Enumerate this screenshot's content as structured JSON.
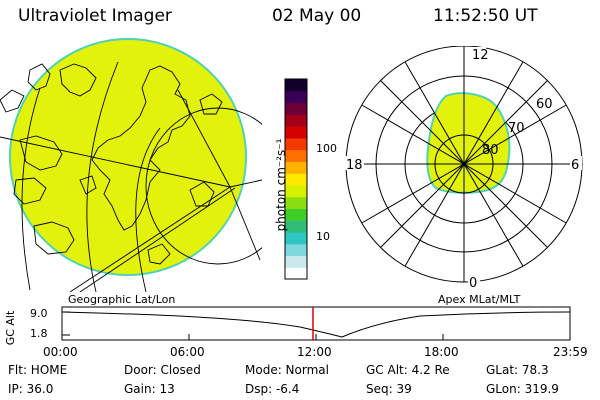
{
  "header": {
    "instrument": "Ultraviolet Imager",
    "date": "02 May 00",
    "time": "11:52:50 UT"
  },
  "colorbar": {
    "unit_label": "photon cm⁻²s⁻¹",
    "ticks": [
      "100",
      "10"
    ],
    "colors": [
      "#ffffff",
      "#c9e9ee",
      "#7fd9dc",
      "#2ec5c5",
      "#2fbd77",
      "#3fcd28",
      "#8cde12",
      "#d6f000",
      "#ffea00",
      "#ffb300",
      "#ff7000",
      "#f23a00",
      "#d40000",
      "#a3001a",
      "#6d0036",
      "#3a0058",
      "#10002a"
    ]
  },
  "panels": {
    "geo_label": "Geographic Lat/Lon",
    "polar_label": "Apex MLat/MLT",
    "fill_color": "#e3f20a",
    "edge_color": "#4fd2b6"
  },
  "polar": {
    "mlt_labels": {
      "top": "12",
      "bottom": "0",
      "left": "18",
      "right": "6"
    },
    "lat_labels": [
      "60",
      "70",
      "80"
    ]
  },
  "altitude_plot": {
    "ylabel": "GC Alt",
    "yticks": [
      "9.0",
      "1.8"
    ],
    "xticks": [
      "00:00",
      "06:00",
      "12:00",
      "18:00",
      "23:59"
    ],
    "marker_color": "#e00000"
  },
  "footer": {
    "flt": "Flt: HOME",
    "door": "Door: Closed",
    "mode": "Mode: Normal",
    "gc_alt": "GC Alt: 4.2 Re",
    "glat": "GLat:  78.3",
    "ip": "IP: 36.0",
    "gain": "Gain: 13",
    "dsp": "Dsp:    -6.4",
    "seq": "Seq: 39",
    "glon": "GLon: 319.9"
  }
}
